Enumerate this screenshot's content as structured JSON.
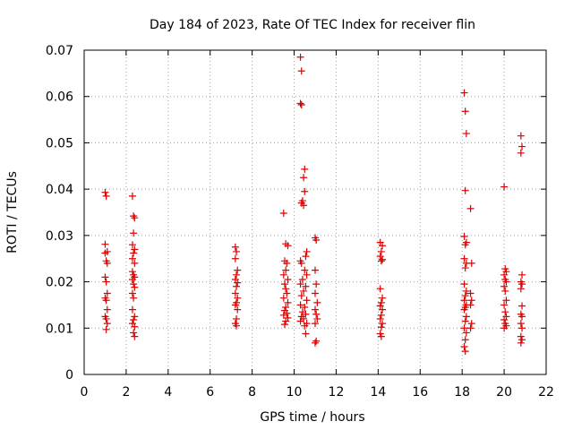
{
  "chart_data": {
    "type": "scatter",
    "title": "Day 184 of 2023, Rate Of TEC Index for receiver flin",
    "xlabel": "GPS time / hours",
    "ylabel": "ROTI / TECUs",
    "xlim": [
      0,
      22
    ],
    "ylim": [
      0,
      0.07
    ],
    "x_ticks": [
      "0",
      "2",
      "4",
      "6",
      "8",
      "10",
      "12",
      "14",
      "16",
      "18",
      "20",
      "22"
    ],
    "y_ticks": [
      "0",
      "0.01",
      "0.02",
      "0.03",
      "0.04",
      "0.05",
      "0.06",
      "0.07"
    ],
    "grid": true,
    "marker": "+",
    "color": "#dd0000",
    "series": [
      {
        "points": [
          [
            1.0,
            0.0393
          ],
          [
            1.05,
            0.0385
          ],
          [
            1.0,
            0.0281
          ],
          [
            1.1,
            0.0265
          ],
          [
            1.0,
            0.0262
          ],
          [
            1.05,
            0.0245
          ],
          [
            1.1,
            0.024
          ],
          [
            1.0,
            0.021
          ],
          [
            1.05,
            0.02
          ],
          [
            1.1,
            0.0175
          ],
          [
            1.0,
            0.0165
          ],
          [
            1.05,
            0.016
          ],
          [
            1.1,
            0.014
          ],
          [
            1.0,
            0.0125
          ],
          [
            1.05,
            0.012
          ],
          [
            1.1,
            0.011
          ],
          [
            1.05,
            0.0097
          ],
          [
            2.3,
            0.0385
          ],
          [
            2.35,
            0.0342
          ],
          [
            2.4,
            0.0338
          ],
          [
            2.35,
            0.0305
          ],
          [
            2.3,
            0.028
          ],
          [
            2.4,
            0.027
          ],
          [
            2.35,
            0.0262
          ],
          [
            2.3,
            0.025
          ],
          [
            2.4,
            0.024
          ],
          [
            2.3,
            0.0222
          ],
          [
            2.35,
            0.0215
          ],
          [
            2.4,
            0.021
          ],
          [
            2.3,
            0.0205
          ],
          [
            2.35,
            0.0195
          ],
          [
            2.4,
            0.0188
          ],
          [
            2.3,
            0.0175
          ],
          [
            2.35,
            0.0165
          ],
          [
            2.3,
            0.014
          ],
          [
            2.4,
            0.0125
          ],
          [
            2.35,
            0.0118
          ],
          [
            2.3,
            0.011
          ],
          [
            2.4,
            0.0103
          ],
          [
            2.35,
            0.009
          ],
          [
            2.4,
            0.0082
          ],
          [
            7.2,
            0.0275
          ],
          [
            7.25,
            0.0265
          ],
          [
            7.2,
            0.025
          ],
          [
            7.3,
            0.0225
          ],
          [
            7.25,
            0.0215
          ],
          [
            7.2,
            0.0205
          ],
          [
            7.3,
            0.0198
          ],
          [
            7.25,
            0.019
          ],
          [
            7.2,
            0.0175
          ],
          [
            7.3,
            0.0165
          ],
          [
            7.25,
            0.0155
          ],
          [
            7.2,
            0.015
          ],
          [
            7.3,
            0.014
          ],
          [
            7.25,
            0.012
          ],
          [
            7.2,
            0.011
          ],
          [
            7.25,
            0.0105
          ],
          [
            9.5,
            0.0348
          ],
          [
            9.6,
            0.0282
          ],
          [
            9.7,
            0.0278
          ],
          [
            9.55,
            0.0245
          ],
          [
            9.65,
            0.024
          ],
          [
            9.6,
            0.0225
          ],
          [
            9.5,
            0.0215
          ],
          [
            9.7,
            0.0205
          ],
          [
            9.55,
            0.0195
          ],
          [
            9.6,
            0.0185
          ],
          [
            9.65,
            0.0175
          ],
          [
            9.5,
            0.0165
          ],
          [
            9.7,
            0.0155
          ],
          [
            9.6,
            0.0145
          ],
          [
            9.55,
            0.0138
          ],
          [
            9.65,
            0.0132
          ],
          [
            9.5,
            0.0128
          ],
          [
            9.7,
            0.0122
          ],
          [
            9.6,
            0.0115
          ],
          [
            9.55,
            0.0108
          ],
          [
            10.3,
            0.0685
          ],
          [
            10.35,
            0.0655
          ],
          [
            10.3,
            0.0585
          ],
          [
            10.35,
            0.0582
          ],
          [
            10.5,
            0.0443
          ],
          [
            10.45,
            0.0425
          ],
          [
            10.5,
            0.0395
          ],
          [
            10.4,
            0.0375
          ],
          [
            10.35,
            0.037
          ],
          [
            10.45,
            0.0365
          ],
          [
            10.6,
            0.0265
          ],
          [
            10.55,
            0.0255
          ],
          [
            10.3,
            0.0245
          ],
          [
            10.35,
            0.024
          ],
          [
            10.5,
            0.0225
          ],
          [
            10.6,
            0.0215
          ],
          [
            10.4,
            0.0205
          ],
          [
            10.3,
            0.0195
          ],
          [
            10.55,
            0.019
          ],
          [
            10.45,
            0.018
          ],
          [
            10.35,
            0.017
          ],
          [
            10.6,
            0.016
          ],
          [
            10.3,
            0.015
          ],
          [
            10.5,
            0.0145
          ],
          [
            10.4,
            0.0135
          ],
          [
            10.55,
            0.013
          ],
          [
            10.35,
            0.0125
          ],
          [
            10.45,
            0.012
          ],
          [
            10.3,
            0.0115
          ],
          [
            10.6,
            0.011
          ],
          [
            10.5,
            0.0105
          ],
          [
            10.55,
            0.0088
          ],
          [
            11.0,
            0.0295
          ],
          [
            11.05,
            0.029
          ],
          [
            11.0,
            0.0225
          ],
          [
            11.05,
            0.0195
          ],
          [
            11.0,
            0.0175
          ],
          [
            11.1,
            0.0155
          ],
          [
            11.0,
            0.014
          ],
          [
            11.05,
            0.013
          ],
          [
            11.1,
            0.012
          ],
          [
            11.0,
            0.011
          ],
          [
            11.05,
            0.0072
          ],
          [
            11.0,
            0.0068
          ],
          [
            14.1,
            0.0285
          ],
          [
            14.2,
            0.0278
          ],
          [
            14.15,
            0.0265
          ],
          [
            14.1,
            0.0255
          ],
          [
            14.2,
            0.0248
          ],
          [
            14.15,
            0.0245
          ],
          [
            14.1,
            0.0185
          ],
          [
            14.2,
            0.0165
          ],
          [
            14.15,
            0.0155
          ],
          [
            14.1,
            0.0148
          ],
          [
            14.2,
            0.014
          ],
          [
            14.15,
            0.0128
          ],
          [
            14.1,
            0.012
          ],
          [
            14.2,
            0.011
          ],
          [
            14.15,
            0.0102
          ],
          [
            14.1,
            0.0088
          ],
          [
            14.15,
            0.0082
          ],
          [
            18.1,
            0.0608
          ],
          [
            18.15,
            0.0568
          ],
          [
            18.2,
            0.052
          ],
          [
            18.15,
            0.0397
          ],
          [
            18.1,
            0.0298
          ],
          [
            18.2,
            0.0285
          ],
          [
            18.15,
            0.028
          ],
          [
            18.1,
            0.025
          ],
          [
            18.2,
            0.024
          ],
          [
            18.15,
            0.023
          ],
          [
            18.1,
            0.0195
          ],
          [
            18.2,
            0.018
          ],
          [
            18.15,
            0.017
          ],
          [
            18.1,
            0.016
          ],
          [
            18.2,
            0.015
          ],
          [
            18.15,
            0.0145
          ],
          [
            18.1,
            0.014
          ],
          [
            18.2,
            0.0125
          ],
          [
            18.15,
            0.0115
          ],
          [
            18.1,
            0.01
          ],
          [
            18.2,
            0.009
          ],
          [
            18.15,
            0.0075
          ],
          [
            18.1,
            0.006
          ],
          [
            18.15,
            0.005
          ],
          [
            18.4,
            0.0358
          ],
          [
            18.45,
            0.024
          ],
          [
            18.4,
            0.0175
          ],
          [
            18.45,
            0.016
          ],
          [
            18.4,
            0.015
          ],
          [
            18.45,
            0.011
          ],
          [
            18.4,
            0.01
          ],
          [
            20.0,
            0.0405
          ],
          [
            20.05,
            0.0228
          ],
          [
            20.1,
            0.0222
          ],
          [
            20.0,
            0.0215
          ],
          [
            20.05,
            0.0205
          ],
          [
            20.1,
            0.02
          ],
          [
            20.0,
            0.019
          ],
          [
            20.05,
            0.018
          ],
          [
            20.1,
            0.016
          ],
          [
            20.0,
            0.015
          ],
          [
            20.05,
            0.0135
          ],
          [
            20.1,
            0.0125
          ],
          [
            20.0,
            0.0118
          ],
          [
            20.05,
            0.011
          ],
          [
            20.1,
            0.0105
          ],
          [
            20.0,
            0.01
          ],
          [
            20.8,
            0.0515
          ],
          [
            20.85,
            0.0492
          ],
          [
            20.8,
            0.0478
          ],
          [
            20.85,
            0.0215
          ],
          [
            20.8,
            0.02
          ],
          [
            20.85,
            0.0195
          ],
          [
            20.8,
            0.0185
          ],
          [
            20.85,
            0.0148
          ],
          [
            20.8,
            0.013
          ],
          [
            20.85,
            0.0125
          ],
          [
            20.8,
            0.011
          ],
          [
            20.85,
            0.01
          ],
          [
            20.8,
            0.0082
          ],
          [
            20.85,
            0.0075
          ],
          [
            20.8,
            0.0068
          ]
        ]
      }
    ]
  }
}
